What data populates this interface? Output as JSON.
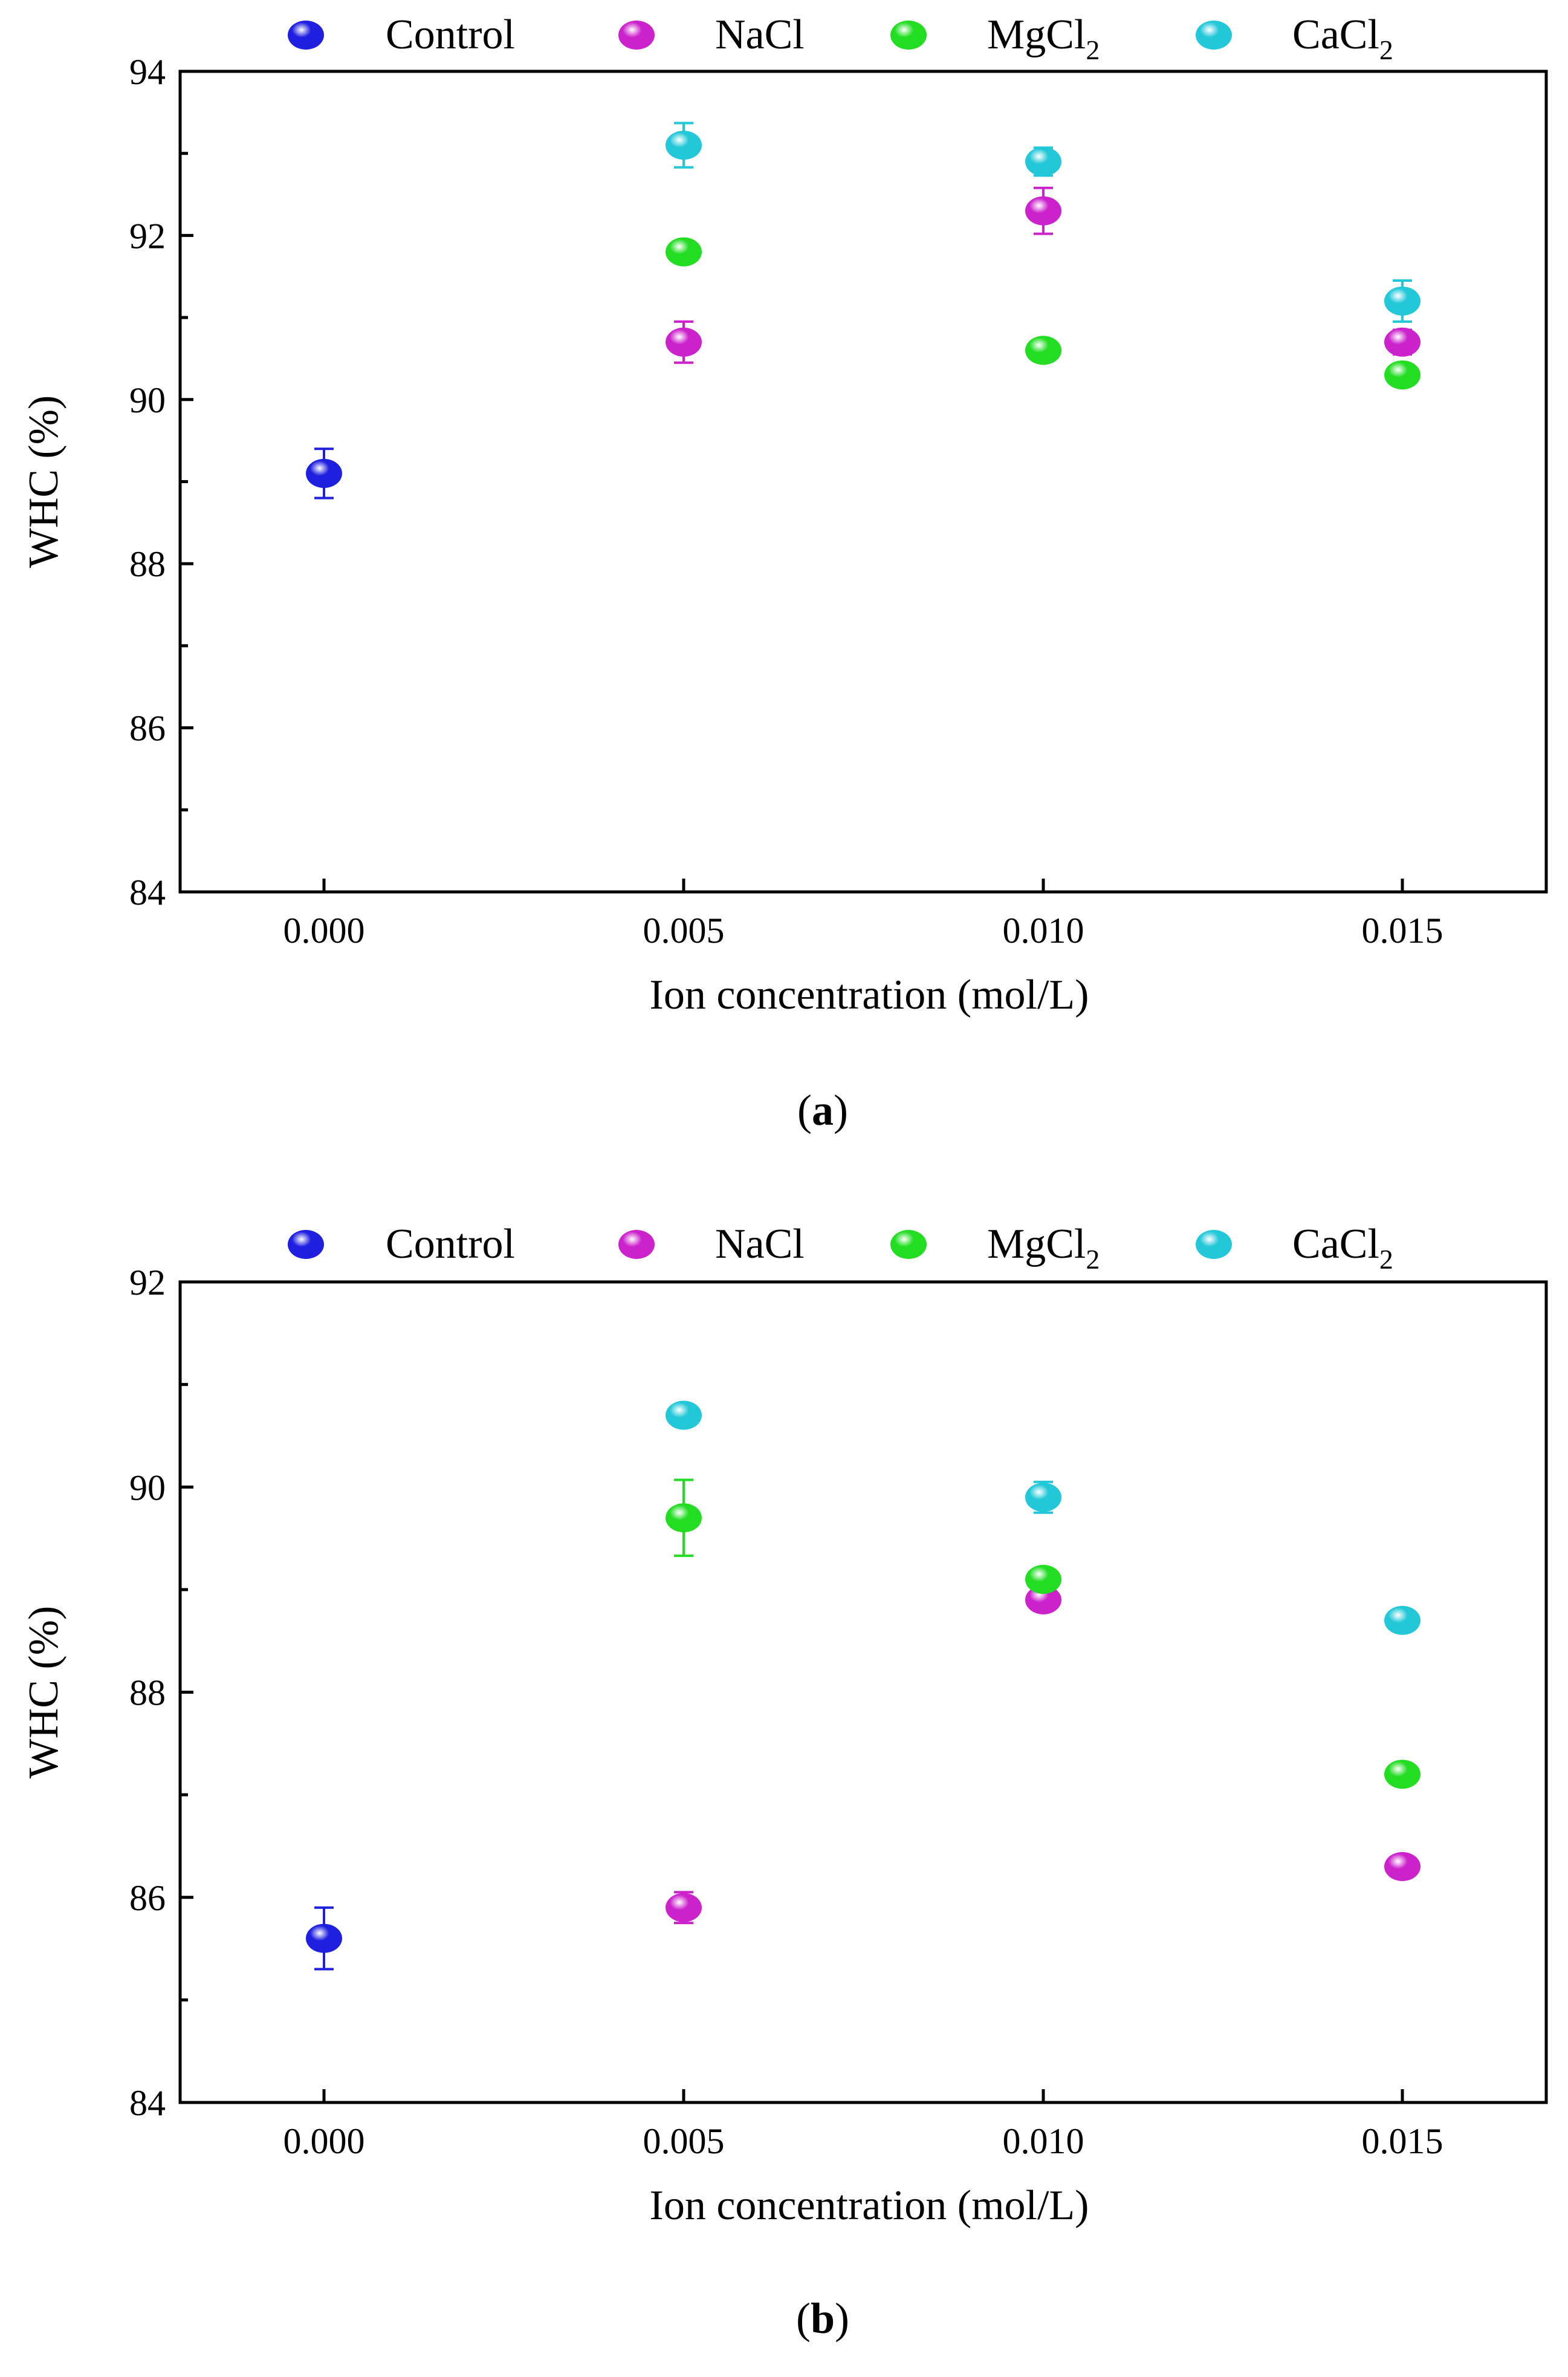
{
  "chart_data": [
    {
      "type": "scatter",
      "panel_label": "a",
      "title": "",
      "xlabel": "Ion concentration (mol/L)",
      "ylabel": "WHC (%)",
      "ylim": [
        84,
        94
      ],
      "y_major_ticks": [
        84,
        86,
        88,
        90,
        92,
        94
      ],
      "y_minor_step": 1,
      "categories": [
        "0.000",
        "0.005",
        "0.010",
        "0.015"
      ],
      "legend": {
        "position": "top",
        "entries": [
          {
            "name": "Control",
            "base": "Control",
            "sub": ""
          },
          {
            "name": "NaCl",
            "base": "NaCl",
            "sub": ""
          },
          {
            "name": "MgCl2",
            "base": "MgCl",
            "sub": "2"
          },
          {
            "name": "CaCl2",
            "base": "CaCl",
            "sub": "2"
          }
        ]
      },
      "series": [
        {
          "name": "Control",
          "color": "#1f1fe0",
          "points": [
            {
              "x": "0.000",
              "y": 89.1,
              "err": 0.3
            }
          ]
        },
        {
          "name": "NaCl",
          "color": "#cc22cc",
          "points": [
            {
              "x": "0.005",
              "y": 90.7,
              "err": 0.25
            },
            {
              "x": "0.010",
              "y": 92.3,
              "err": 0.28
            },
            {
              "x": "0.015",
              "y": 90.7,
              "err": 0.15
            }
          ]
        },
        {
          "name": "MgCl2",
          "color": "#22dd22",
          "points": [
            {
              "x": "0.005",
              "y": 91.8,
              "err": 0.05
            },
            {
              "x": "0.010",
              "y": 90.6,
              "err": 0.05
            },
            {
              "x": "0.015",
              "y": 90.3,
              "err": 0.05
            }
          ]
        },
        {
          "name": "CaCl2",
          "color": "#22c8d8",
          "points": [
            {
              "x": "0.005",
              "y": 93.1,
              "err": 0.27
            },
            {
              "x": "0.010",
              "y": 92.9,
              "err": 0.17
            },
            {
              "x": "0.015",
              "y": 91.2,
              "err": 0.25
            }
          ]
        }
      ]
    },
    {
      "type": "scatter",
      "panel_label": "b",
      "title": "",
      "xlabel": "Ion concentration (mol/L)",
      "ylabel": "WHC (%)",
      "ylim": [
        84,
        92
      ],
      "y_major_ticks": [
        84,
        86,
        88,
        90,
        92
      ],
      "y_minor_step": 1,
      "categories": [
        "0.000",
        "0.005",
        "0.010",
        "0.015"
      ],
      "legend": {
        "position": "top",
        "entries": [
          {
            "name": "Control",
            "base": "Control",
            "sub": ""
          },
          {
            "name": "NaCl",
            "base": "NaCl",
            "sub": ""
          },
          {
            "name": "MgCl2",
            "base": "MgCl",
            "sub": "2"
          },
          {
            "name": "CaCl2",
            "base": "CaCl",
            "sub": "2"
          }
        ]
      },
      "series": [
        {
          "name": "Control",
          "color": "#1f1fe0",
          "points": [
            {
              "x": "0.000",
              "y": 85.6,
              "err": 0.3
            }
          ]
        },
        {
          "name": "NaCl",
          "color": "#cc22cc",
          "points": [
            {
              "x": "0.005",
              "y": 85.9,
              "err": 0.15
            },
            {
              "x": "0.010",
              "y": 88.9,
              "err": 0.05
            },
            {
              "x": "0.015",
              "y": 86.3,
              "err": 0.05
            }
          ]
        },
        {
          "name": "MgCl2",
          "color": "#22dd22",
          "points": [
            {
              "x": "0.005",
              "y": 89.7,
              "err": 0.37
            },
            {
              "x": "0.010",
              "y": 89.1,
              "err": 0.05
            },
            {
              "x": "0.015",
              "y": 87.2,
              "err": 0.05
            }
          ]
        },
        {
          "name": "CaCl2",
          "color": "#22c8d8",
          "points": [
            {
              "x": "0.005",
              "y": 90.7,
              "err": 0.05
            },
            {
              "x": "0.010",
              "y": 89.9,
              "err": 0.15
            },
            {
              "x": "0.015",
              "y": 88.7,
              "err": 0.05
            }
          ]
        }
      ]
    }
  ]
}
